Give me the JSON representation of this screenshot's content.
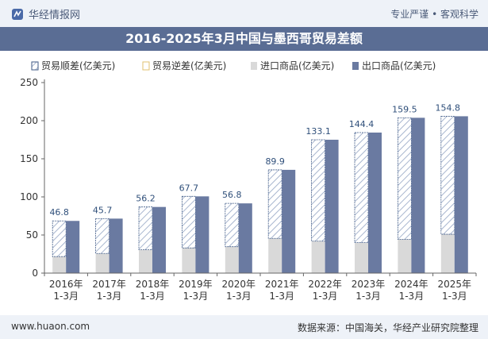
{
  "header": {
    "brand": "华经情报网",
    "tagline": "专业严谨 • 客观科学"
  },
  "footer": {
    "site": "www.huaon.com",
    "source": "数据来源：中国海关，华经产业研究院整理"
  },
  "colors": {
    "surplus": "#3f5a86",
    "import": "#d9d9d9",
    "export": "#6a7aa1",
    "title_bg": "#5a6d94"
  },
  "chart_data": {
    "type": "bar",
    "title": "2016-2025年3月中国与墨西哥贸易差额",
    "categories": [
      "2016年\n1-3月",
      "2017年\n1-3月",
      "2018年\n1-3月",
      "2019年\n1-3月",
      "2020年\n1-3月",
      "2021年\n1-3月",
      "2022年\n1-3月",
      "2023年\n1-3月",
      "2024年\n1-3月",
      "2025年\n1-3月"
    ],
    "legend": [
      "贸易顺差(亿美元)",
      "贸易逆差(亿美元)",
      "进口商品(亿美元)",
      "出口商品(亿美元)"
    ],
    "legend_position": "top",
    "ylim": [
      0,
      250
    ],
    "yticks": [
      0,
      50,
      100,
      150,
      200,
      250
    ],
    "grid": false,
    "series": [
      {
        "name": "贸易顺差(亿美元)",
        "values": [
          46.8,
          45.7,
          56.2,
          67.7,
          56.8,
          89.9,
          133.1,
          144.4,
          159.5,
          154.8
        ]
      },
      {
        "name": "贸易逆差(亿美元)",
        "values": [
          0,
          0,
          0,
          0,
          0,
          0,
          0,
          0,
          0,
          0
        ]
      },
      {
        "name": "进口商品(亿美元)",
        "values": [
          21.7,
          25.8,
          30.6,
          33.0,
          34.7,
          45.6,
          41.9,
          40.0,
          44.3,
          51.0
        ]
      },
      {
        "name": "出口商品(亿美元)",
        "values": [
          68.5,
          71.5,
          86.8,
          100.7,
          91.5,
          135.5,
          175.0,
          184.4,
          203.8,
          205.8
        ]
      }
    ],
    "data_labels": [
      "46.8",
      "45.7",
      "56.2",
      "67.7",
      "56.8",
      "89.9",
      "133.1",
      "144.4",
      "159.5",
      "154.8"
    ]
  }
}
